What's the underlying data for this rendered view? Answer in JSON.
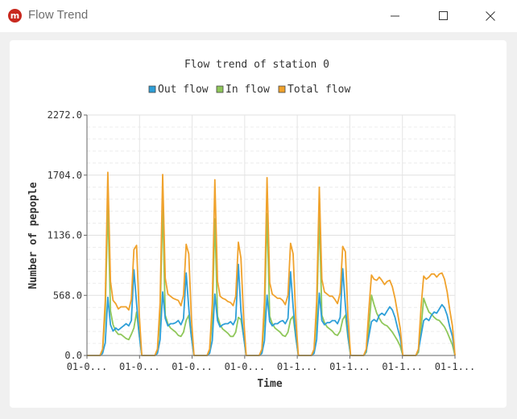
{
  "window": {
    "title": "Flow Trend",
    "icon": "app-logo-icon",
    "controls": [
      "minimize-icon",
      "maximize-icon",
      "close-icon"
    ]
  },
  "chart_data": {
    "type": "line",
    "title": "Flow trend of station 0",
    "xlabel": "Time",
    "ylabel": "Number of pepople",
    "ylim": [
      0,
      2272
    ],
    "y_ticks": [
      "0.0",
      "568.0",
      "1136.0",
      "1704.0",
      "2272.0"
    ],
    "x_ticks": [
      "01-0...",
      "01-0...",
      "01-0...",
      "01-0...",
      "01-1...",
      "01-1...",
      "01-1...",
      "01-1..."
    ],
    "legend_position": "top-center",
    "grid": true,
    "series": [
      {
        "name": "Out flow",
        "color": "#2e9fd8",
        "values": [
          0,
          0,
          0,
          0,
          0,
          0,
          20,
          120,
          550,
          290,
          230,
          260,
          240,
          260,
          280,
          300,
          280,
          330,
          810,
          490,
          200,
          0,
          0,
          0,
          0,
          0,
          0,
          20,
          150,
          600,
          350,
          280,
          300,
          300,
          310,
          330,
          290,
          350,
          780,
          450,
          180,
          0,
          0,
          0,
          0,
          0,
          0,
          20,
          140,
          580,
          330,
          270,
          290,
          300,
          300,
          320,
          290,
          340,
          860,
          420,
          180,
          0,
          0,
          0,
          0,
          0,
          0,
          20,
          140,
          570,
          320,
          280,
          300,
          300,
          320,
          330,
          300,
          350,
          790,
          460,
          180,
          0,
          0,
          0,
          0,
          0,
          0,
          20,
          150,
          590,
          330,
          290,
          310,
          310,
          330,
          330,
          300,
          360,
          820,
          470,
          190,
          0,
          0,
          0,
          0,
          0,
          0,
          40,
          180,
          320,
          340,
          320,
          380,
          400,
          380,
          420,
          460,
          430,
          360,
          260,
          170,
          0,
          0,
          0,
          0,
          0,
          0,
          50,
          190,
          330,
          350,
          330,
          380,
          410,
          400,
          440,
          480,
          450,
          380,
          270,
          180,
          0
        ]
      },
      {
        "name": "In flow",
        "color": "#8fc75a",
        "values": [
          0,
          0,
          0,
          0,
          0,
          0,
          50,
          400,
          1420,
          420,
          290,
          230,
          200,
          200,
          180,
          160,
          150,
          200,
          260,
          410,
          200,
          0,
          0,
          0,
          0,
          0,
          0,
          40,
          360,
          1420,
          380,
          300,
          260,
          240,
          220,
          190,
          180,
          220,
          330,
          380,
          180,
          0,
          0,
          0,
          0,
          0,
          0,
          40,
          350,
          1290,
          370,
          290,
          250,
          230,
          210,
          180,
          180,
          220,
          360,
          340,
          180,
          0,
          0,
          0,
          0,
          0,
          0,
          40,
          360,
          1340,
          370,
          300,
          260,
          240,
          220,
          190,
          180,
          220,
          340,
          370,
          170,
          0,
          0,
          0,
          0,
          0,
          0,
          40,
          360,
          1330,
          380,
          310,
          270,
          250,
          230,
          200,
          190,
          230,
          340,
          380,
          170,
          0,
          0,
          0,
          0,
          0,
          0,
          30,
          250,
          570,
          480,
          400,
          350,
          310,
          290,
          280,
          250,
          220,
          180,
          140,
          90,
          0,
          0,
          0,
          0,
          0,
          0,
          30,
          260,
          540,
          470,
          410,
          390,
          360,
          340,
          330,
          300,
          270,
          220,
          160,
          100,
          0
        ]
      },
      {
        "name": "Total flow",
        "color": "#f0a22c",
        "values": [
          0,
          0,
          0,
          0,
          0,
          0,
          60,
          520,
          1730,
          700,
          520,
          490,
          440,
          460,
          460,
          460,
          430,
          530,
          1000,
          1040,
          400,
          0,
          0,
          0,
          0,
          0,
          0,
          60,
          500,
          1710,
          730,
          580,
          560,
          540,
          530,
          520,
          470,
          570,
          1050,
          960,
          360,
          0,
          0,
          0,
          0,
          0,
          0,
          60,
          490,
          1660,
          700,
          560,
          540,
          530,
          510,
          500,
          470,
          560,
          1070,
          920,
          360,
          0,
          0,
          0,
          0,
          0,
          0,
          60,
          510,
          1680,
          690,
          580,
          560,
          540,
          540,
          520,
          480,
          570,
          1060,
          960,
          350,
          0,
          0,
          0,
          0,
          0,
          0,
          60,
          510,
          1590,
          720,
          600,
          580,
          560,
          560,
          530,
          490,
          590,
          1030,
          980,
          360,
          0,
          0,
          0,
          0,
          0,
          0,
          60,
          430,
          760,
          720,
          710,
          740,
          710,
          670,
          700,
          710,
          650,
          540,
          400,
          260,
          0,
          0,
          0,
          0,
          0,
          0,
          60,
          460,
          750,
          720,
          740,
          770,
          770,
          740,
          770,
          780,
          720,
          600,
          430,
          280,
          0
        ]
      }
    ]
  }
}
